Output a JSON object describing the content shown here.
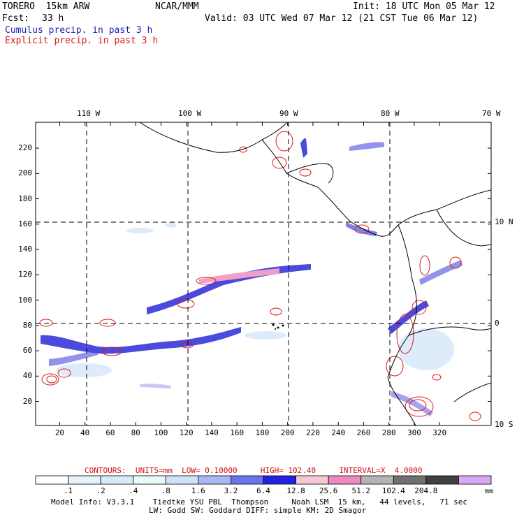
{
  "header": {
    "model": "TORERO  15km ARW",
    "org": "NCAR/MMM",
    "init": "Init: 18 UTC Mon 05 Mar 12",
    "fcst_label": "Fcst:",
    "fcst_value": "33 h",
    "valid": "Valid: 03 UTC Wed 07 Mar 12 (21 CST Tue 06 Mar 12)",
    "legend_cumulus": "Cumulus precip. in past 3 h",
    "legend_explicit": "Explicit precip. in past 3 h"
  },
  "map": {
    "lon_labels": [
      "110 W",
      "100 W",
      "90 W",
      "80 W",
      "70 W"
    ],
    "lat_labels": [
      "10 N",
      "0",
      "10 S"
    ],
    "x_ticks": [
      "20",
      "40",
      "60",
      "80",
      "100",
      "120",
      "140",
      "160",
      "180",
      "200",
      "220",
      "240",
      "260",
      "280",
      "300",
      "320"
    ],
    "y_ticks": [
      "20",
      "40",
      "60",
      "80",
      "100",
      "120",
      "140",
      "160",
      "180",
      "200",
      "220"
    ],
    "colors": {
      "coast": "#000000",
      "grid": "#000000",
      "cumulus": "#2a2ad8",
      "explicit": "#e01818"
    }
  },
  "contours_line": {
    "label": "CONTOURS:",
    "units": "UNITS=mm",
    "low": "LOW= 0.10000",
    "high": "HIGH= 102.40",
    "interval": "INTERVAL=X  4.0000"
  },
  "colorbar": {
    "labels": [
      ".1",
      ".2",
      ".4",
      ".8",
      "1.6",
      "3.2",
      "6.4",
      "12.8",
      "25.6",
      "51.2",
      "102.4",
      "204.8"
    ],
    "unit": "mm",
    "colors": [
      "#ffffff",
      "#e8f2fb",
      "#d8ecf7",
      "#e8fafa",
      "#cfe2f8",
      "#a9b8f4",
      "#6a74ee",
      "#2222e0",
      "#f6c8d6",
      "#ee88c0",
      "#b4b4b4",
      "#707070",
      "#404040",
      "#d8a8f4"
    ]
  },
  "footer": {
    "line1": "Model Info: V3.3.1    Tiedtke YSU PBL  Thompson     Noah LSM  15 km,   44 levels,   71 sec",
    "line2": "LW: Godd SW: Goddard DIFF: simple KM: 2D Smagor"
  }
}
